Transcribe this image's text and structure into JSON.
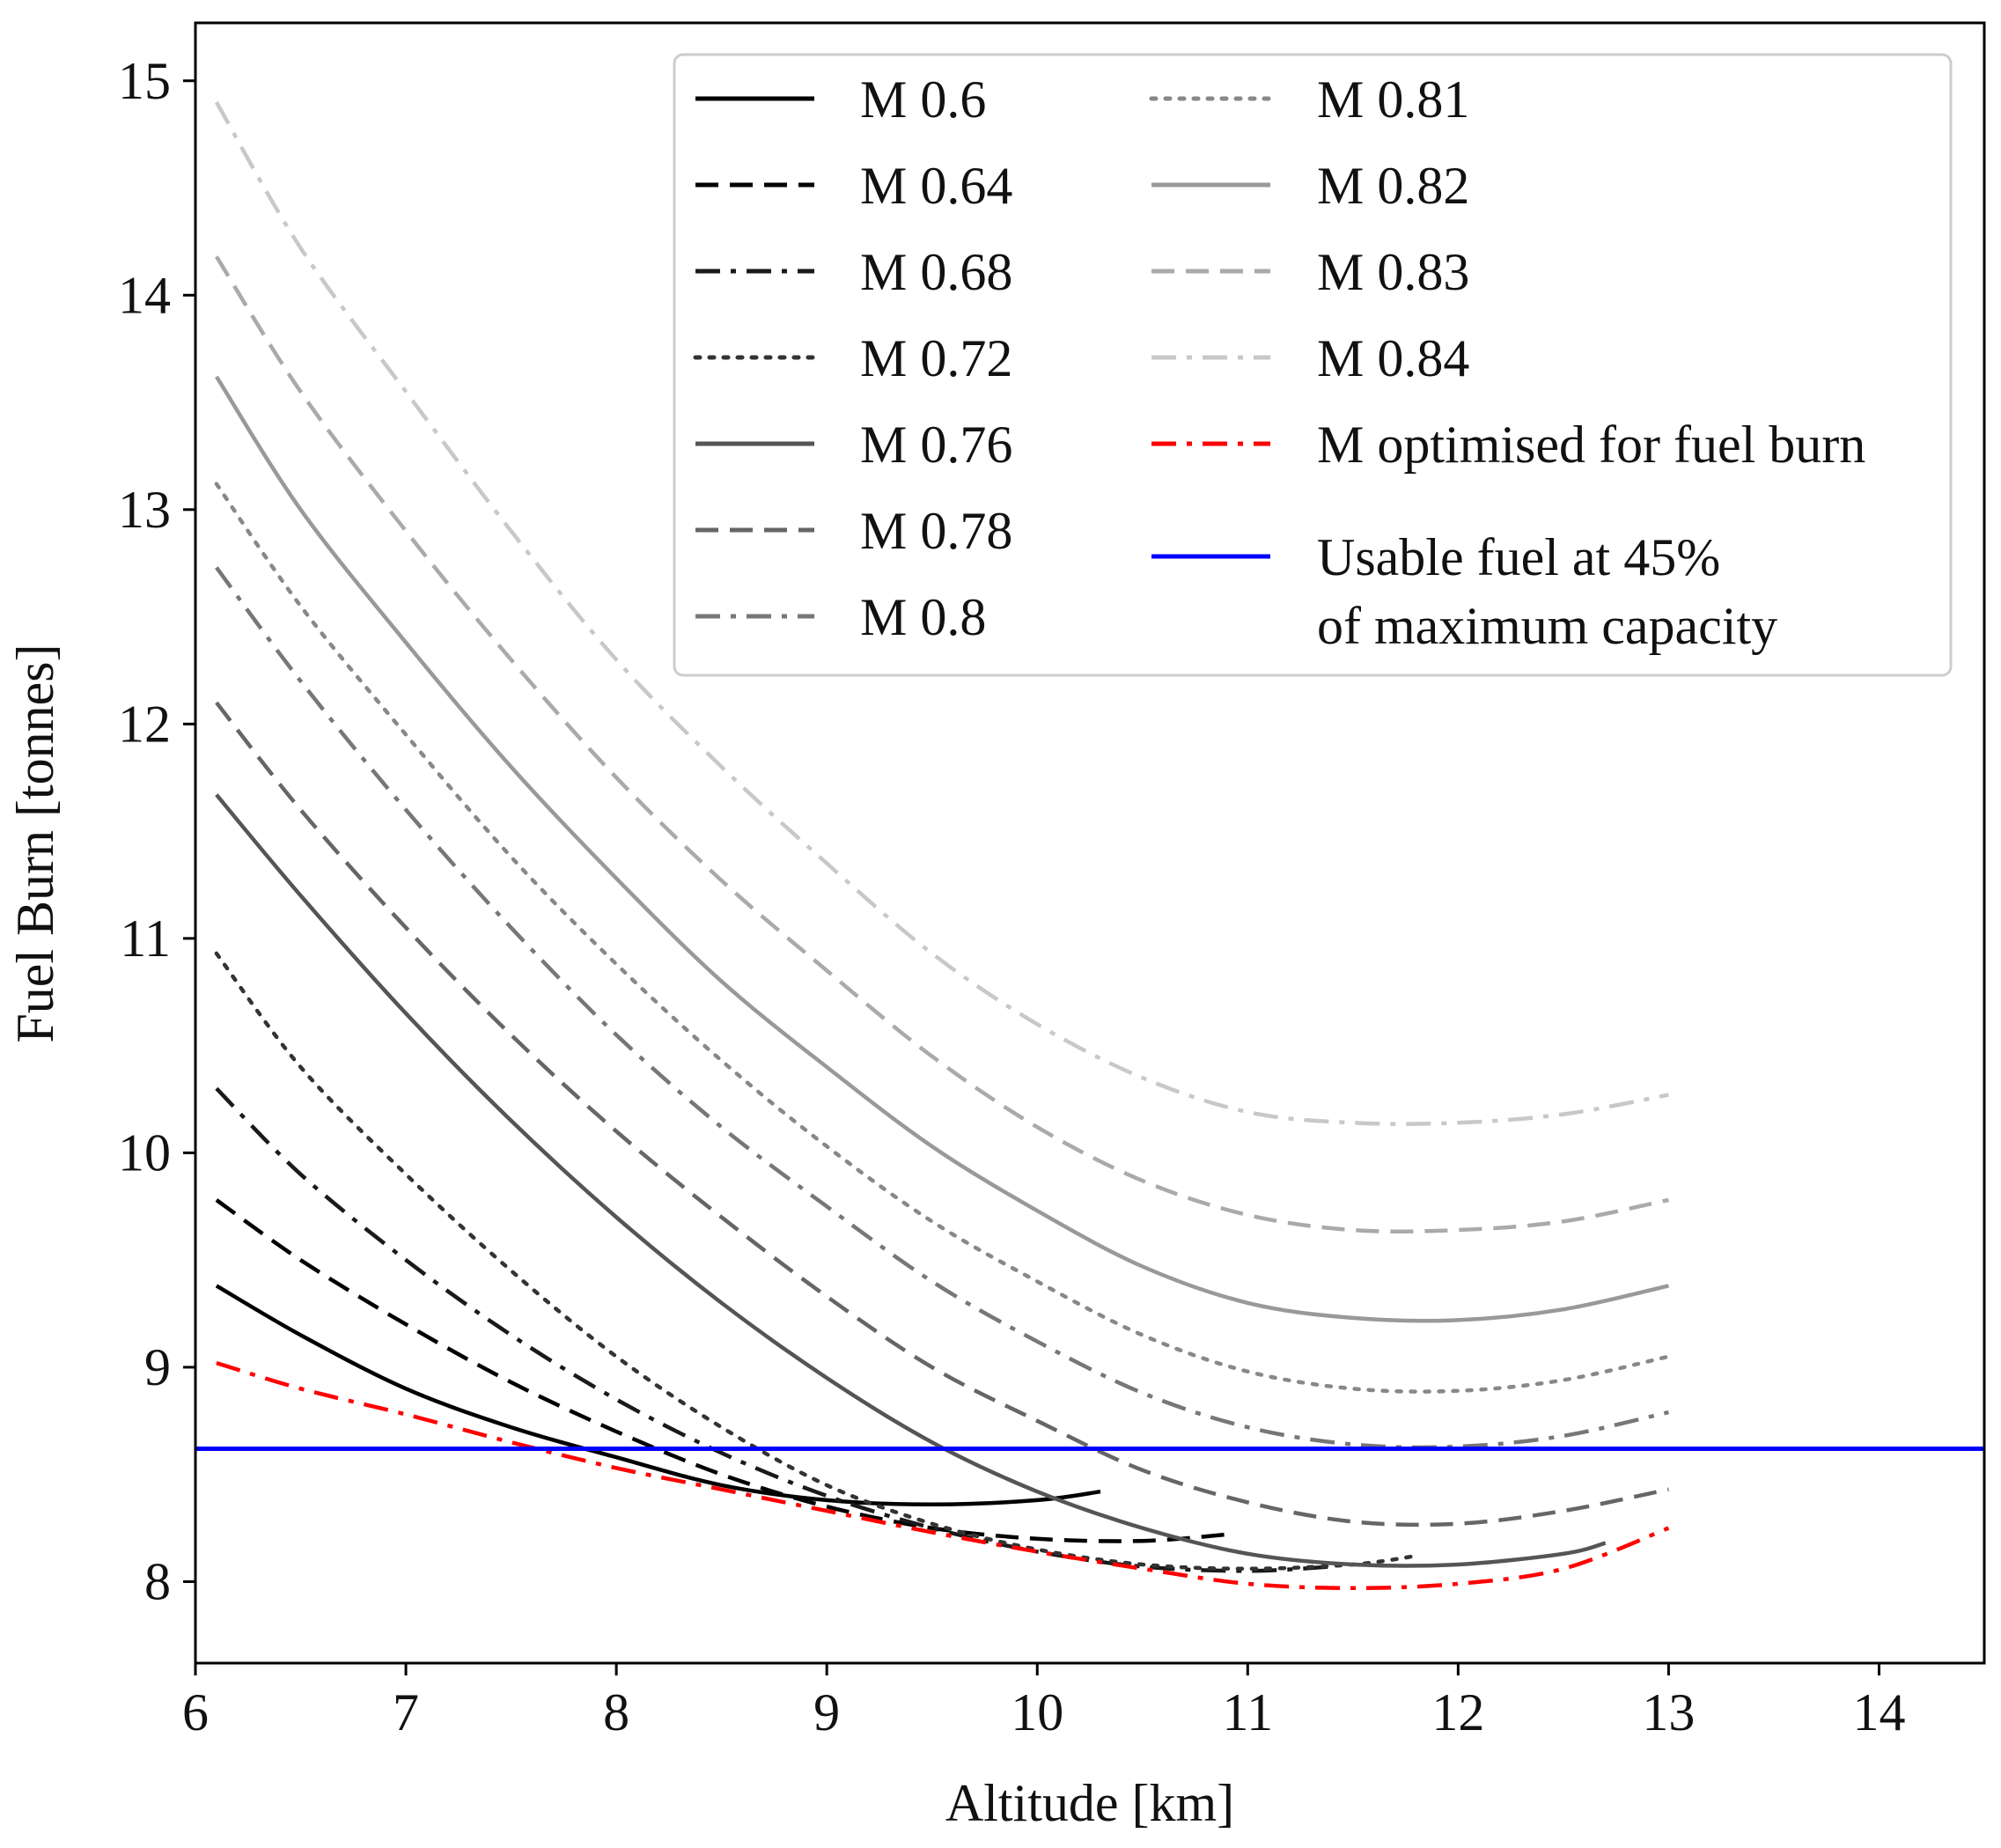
{
  "chart_data": {
    "type": "line",
    "title": "",
    "xlabel": "Altitude [km]",
    "ylabel": "Fuel Burn [tonnes]",
    "xlim": [
      6,
      14.5
    ],
    "ylim": [
      7.62,
      15.27
    ],
    "xticks": [
      6,
      7,
      8,
      9,
      10,
      11,
      12,
      13,
      14
    ],
    "yticks": [
      8,
      9,
      10,
      11,
      12,
      13,
      14,
      15
    ],
    "grid": false,
    "legend_position": "top-right",
    "series": [
      {
        "name": "M 0.6",
        "color": "#000000",
        "dash": "solid",
        "x": [
          6.1,
          6.5,
          7.0,
          7.5,
          8.0,
          8.5,
          9.0,
          9.5,
          10.0,
          10.3
        ],
        "y": [
          9.38,
          9.15,
          8.9,
          8.72,
          8.58,
          8.45,
          8.38,
          8.36,
          8.38,
          8.42
        ]
      },
      {
        "name": "M 0.64",
        "color": "#000000",
        "dash": "dashed",
        "x": [
          6.1,
          6.5,
          7.0,
          7.5,
          8.0,
          8.5,
          9.0,
          9.5,
          10.0,
          10.5,
          10.9
        ],
        "y": [
          9.78,
          9.5,
          9.2,
          8.93,
          8.7,
          8.5,
          8.35,
          8.25,
          8.2,
          8.19,
          8.22
        ]
      },
      {
        "name": "M 0.68",
        "color": "#1a1a1a",
        "dash": "dashdot",
        "x": [
          6.1,
          6.5,
          7.0,
          7.5,
          8.0,
          8.5,
          9.0,
          9.5,
          10.0,
          10.5,
          11.0,
          11.4
        ],
        "y": [
          10.3,
          9.9,
          9.5,
          9.15,
          8.85,
          8.6,
          8.4,
          8.25,
          8.14,
          8.07,
          8.05,
          8.07
        ]
      },
      {
        "name": "M 0.72",
        "color": "#333333",
        "dash": "dotted",
        "x": [
          6.1,
          6.5,
          7.0,
          7.5,
          8.0,
          8.5,
          9.0,
          9.5,
          10.0,
          10.5,
          11.0,
          11.5,
          11.8
        ],
        "y": [
          10.93,
          10.4,
          9.9,
          9.45,
          9.05,
          8.72,
          8.45,
          8.27,
          8.15,
          8.08,
          8.06,
          8.08,
          8.12
        ]
      },
      {
        "name": "M 0.76",
        "color": "#555555",
        "dash": "solid",
        "x": [
          6.1,
          6.5,
          7.0,
          7.5,
          8.0,
          8.5,
          9.0,
          9.5,
          10.0,
          10.5,
          11.0,
          11.5,
          12.0,
          12.5,
          12.7
        ],
        "y": [
          11.67,
          11.2,
          10.65,
          10.15,
          9.7,
          9.3,
          8.95,
          8.65,
          8.42,
          8.25,
          8.13,
          8.08,
          8.08,
          8.13,
          8.18
        ]
      },
      {
        "name": "M 0.78",
        "color": "#666666",
        "dash": "dashed",
        "x": [
          6.1,
          6.5,
          7.0,
          7.5,
          8.0,
          8.5,
          9.0,
          9.5,
          10.0,
          10.5,
          11.0,
          11.5,
          12.0,
          12.5,
          13.0
        ],
        "y": [
          12.1,
          11.6,
          11.05,
          10.55,
          10.1,
          9.7,
          9.33,
          9.0,
          8.75,
          8.52,
          8.37,
          8.28,
          8.27,
          8.33,
          8.43
        ]
      },
      {
        "name": "M 0.8",
        "color": "#777777",
        "dash": "dashdot",
        "x": [
          6.1,
          6.5,
          7.0,
          7.5,
          8.0,
          8.5,
          9.0,
          9.5,
          10.0,
          10.5,
          11.0,
          11.5,
          12.0,
          12.5,
          13.0
        ],
        "y": [
          12.73,
          12.2,
          11.6,
          11.05,
          10.55,
          10.12,
          9.75,
          9.4,
          9.12,
          8.88,
          8.72,
          8.64,
          8.63,
          8.68,
          8.79
        ]
      },
      {
        "name": "M 0.81",
        "color": "#888888",
        "dash": "dotted",
        "x": [
          6.1,
          6.5,
          7.0,
          7.5,
          8.0,
          8.5,
          9.0,
          9.5,
          10.0,
          10.5,
          11.0,
          11.5,
          12.0,
          12.5,
          13.0
        ],
        "y": [
          13.12,
          12.55,
          11.95,
          11.38,
          10.88,
          10.43,
          10.03,
          9.68,
          9.4,
          9.15,
          8.98,
          8.9,
          8.89,
          8.94,
          9.05
        ]
      },
      {
        "name": "M 0.82",
        "color": "#999999",
        "dash": "solid",
        "x": [
          6.1,
          6.5,
          7.0,
          7.5,
          8.0,
          8.5,
          9.0,
          9.5,
          10.0,
          10.5,
          11.0,
          11.5,
          12.0,
          12.5,
          13.0
        ],
        "y": [
          13.62,
          13.0,
          12.38,
          11.8,
          11.28,
          10.8,
          10.4,
          10.03,
          9.73,
          9.47,
          9.3,
          9.23,
          9.22,
          9.27,
          9.38
        ]
      },
      {
        "name": "M 0.83",
        "color": "#aaaaaa",
        "dash": "dashed",
        "x": [
          6.1,
          6.5,
          7.0,
          7.5,
          8.0,
          8.5,
          9.0,
          9.5,
          10.0,
          10.5,
          11.0,
          11.5,
          12.0,
          12.5,
          13.0
        ],
        "y": [
          14.18,
          13.55,
          12.9,
          12.3,
          11.75,
          11.27,
          10.85,
          10.45,
          10.12,
          9.87,
          9.71,
          9.64,
          9.64,
          9.68,
          9.78
        ]
      },
      {
        "name": "M 0.84",
        "color": "#c8c8c8",
        "dash": "dashdot",
        "x": [
          6.1,
          6.5,
          7.0,
          7.5,
          8.0,
          8.5,
          9.0,
          9.5,
          10.0,
          10.5,
          11.0,
          11.5,
          12.0,
          12.5,
          13.0
        ],
        "y": [
          14.9,
          14.22,
          13.55,
          12.9,
          12.3,
          11.8,
          11.35,
          10.93,
          10.6,
          10.35,
          10.19,
          10.14,
          10.14,
          10.18,
          10.27
        ]
      },
      {
        "name": "M optimised for fuel burn",
        "color": "#ff0000",
        "dash": "dashdot",
        "x": [
          6.1,
          6.5,
          7.0,
          7.5,
          8.0,
          8.5,
          9.0,
          9.5,
          10.0,
          10.5,
          11.0,
          11.5,
          12.0,
          12.5,
          13.0
        ],
        "y": [
          9.02,
          8.9,
          8.78,
          8.65,
          8.53,
          8.43,
          8.33,
          8.23,
          8.14,
          8.06,
          7.99,
          7.97,
          7.99,
          8.06,
          8.25
        ]
      }
    ],
    "hline": {
      "name": "Usable fuel at 45% of maximum capacity",
      "legend_lines": [
        "Usable fuel at 45%",
        "of maximum capacity"
      ],
      "y": 8.62,
      "color": "#0000ff"
    }
  }
}
